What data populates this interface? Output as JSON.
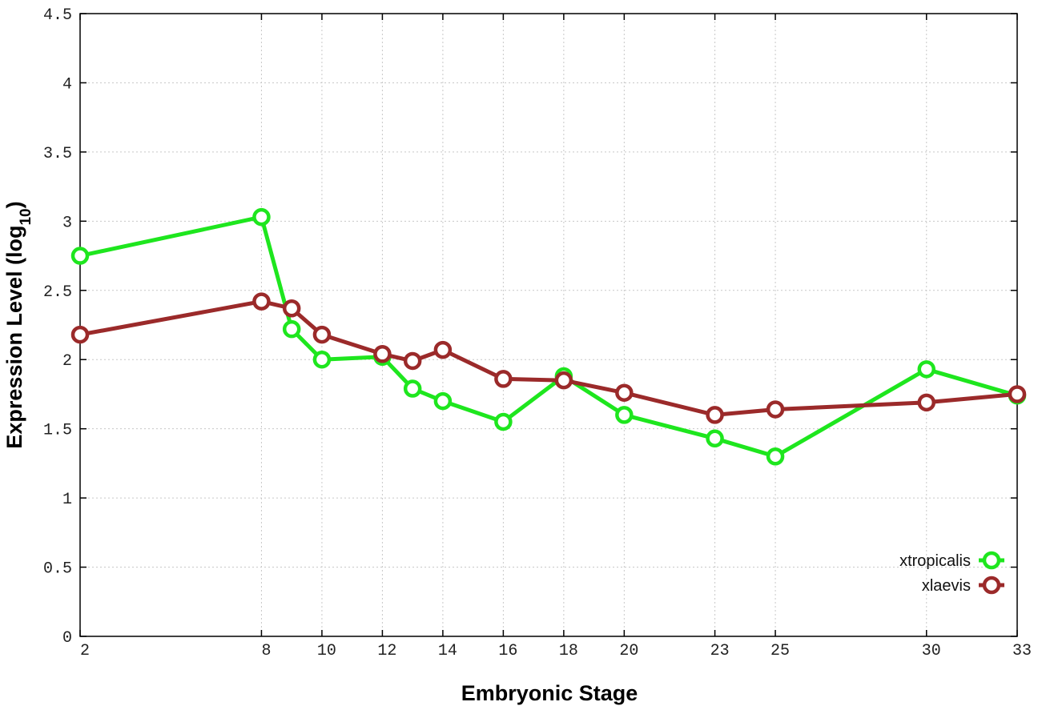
{
  "chart_data": {
    "type": "line",
    "xlabel": "Embryonic Stage",
    "ylabel_main": "Expression Level (log",
    "ylabel_sub": "10",
    "ylabel_close": ")",
    "xlim": [
      2,
      33
    ],
    "ylim": [
      0,
      4.5
    ],
    "x_ticks": [
      2,
      8,
      10,
      12,
      14,
      16,
      18,
      20,
      23,
      25,
      30,
      33
    ],
    "x_tick_labels": [
      "2",
      "8",
      "10",
      "12",
      "14",
      "16",
      "18",
      "20",
      "23",
      "25",
      "30",
      "33"
    ],
    "y_ticks": [
      0,
      0.5,
      1,
      1.5,
      2,
      2.5,
      3,
      3.5,
      4,
      4.5
    ],
    "y_tick_labels": [
      "0",
      "0.5",
      "1",
      "1.5",
      "2",
      "2.5",
      "3",
      "3.5",
      "4",
      "4.5"
    ],
    "grid": true,
    "legend_position": "bottom-right",
    "x": [
      2,
      8,
      9,
      10,
      12,
      13,
      14,
      16,
      18,
      20,
      23,
      25,
      30,
      33
    ],
    "series": [
      {
        "name": "xtropicalis",
        "color": "#1ee61e",
        "values": [
          2.75,
          3.03,
          2.22,
          2.0,
          2.02,
          1.79,
          1.7,
          1.55,
          1.88,
          1.6,
          1.43,
          1.3,
          1.93,
          1.74
        ]
      },
      {
        "name": "xlaevis",
        "color": "#9b2a2a",
        "values": [
          2.18,
          2.42,
          2.37,
          2.18,
          2.04,
          1.99,
          2.07,
          1.86,
          1.85,
          1.76,
          1.6,
          1.64,
          1.69,
          1.75
        ]
      }
    ]
  }
}
